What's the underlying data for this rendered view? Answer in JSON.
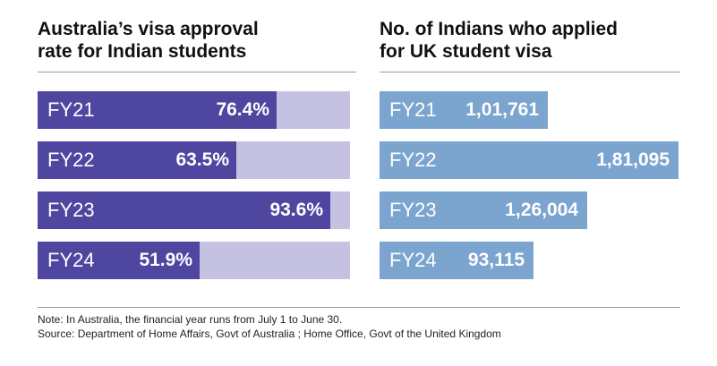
{
  "chart_data": [
    {
      "type": "bar",
      "orientation": "horizontal",
      "title": "Australia’s visa approval\nrate for Indian students",
      "categories": [
        "FY21",
        "FY22",
        "FY23",
        "FY24"
      ],
      "values": [
        76.4,
        63.5,
        93.6,
        51.9
      ],
      "value_labels": [
        "76.4%",
        "63.5%",
        "93.6%",
        "51.9%"
      ],
      "unit": "%",
      "xlim": [
        0,
        100
      ],
      "grid": false,
      "colors": {
        "fill": "#4f46a0",
        "track": "#c5c1e2"
      }
    },
    {
      "type": "bar",
      "orientation": "horizontal",
      "title": "No. of Indians who applied\nfor UK student visa",
      "categories": [
        "FY21",
        "FY22",
        "FY23",
        "FY24"
      ],
      "values": [
        101761,
        181095,
        126004,
        93115
      ],
      "value_labels": [
        "1,01,761",
        "1,81,095",
        "1,26,004",
        "93,115"
      ],
      "xlim": [
        0,
        181095
      ],
      "grid": false,
      "colors": {
        "fill": "#7ba4cf"
      }
    }
  ],
  "footer": {
    "note": "Note: In Australia, the financial year runs from July 1 to June 30.",
    "source": "Source: Department of Home Affairs, Govt of Australia ; Home Office, Govt of the United Kingdom"
  }
}
